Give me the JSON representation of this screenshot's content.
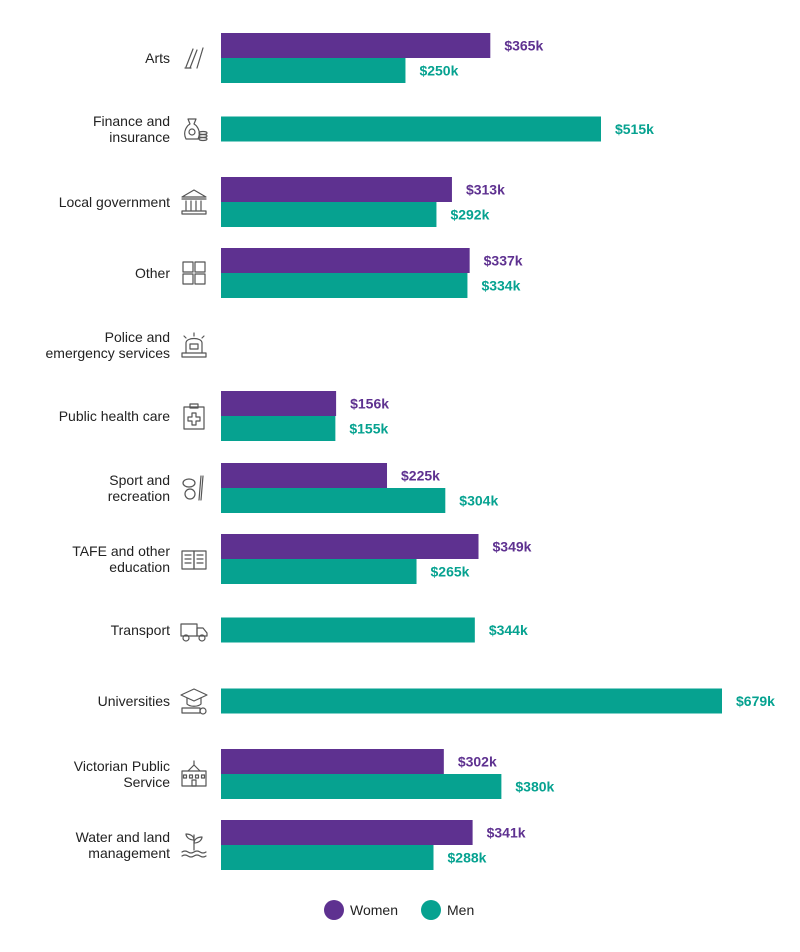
{
  "chart_data": {
    "type": "bar",
    "orientation": "horizontal",
    "categories": [
      [
        "Arts"
      ],
      [
        "Finance and",
        "insurance"
      ],
      [
        "Local government"
      ],
      [
        "Other"
      ],
      [
        "Police and",
        "emergency services"
      ],
      [
        "Public health care"
      ],
      [
        "Sport and",
        "recreation"
      ],
      [
        "TAFE and other",
        "education"
      ],
      [
        "Transport"
      ],
      [
        "Universities"
      ],
      [
        "Victorian Public",
        "Service"
      ],
      [
        "Water and land",
        "management"
      ]
    ],
    "icons": [
      "paintbrush-icon",
      "money-bag-icon",
      "government-building-icon",
      "grid-squares-icon",
      "siren-icon",
      "medical-clipboard-icon",
      "sport-equipment-icon",
      "books-icon",
      "truck-icon",
      "graduation-cap-icon",
      "school-building-icon",
      "water-plant-icon"
    ],
    "series": [
      {
        "name": "Women",
        "color": "#5e3190",
        "values": [
          365,
          null,
          313,
          337,
          null,
          156,
          225,
          349,
          null,
          null,
          302,
          341
        ],
        "labels": [
          "$365k",
          null,
          "$313k",
          "$337k",
          null,
          "$156k",
          "$225k",
          "$349k",
          null,
          null,
          "$302k",
          "$341k"
        ]
      },
      {
        "name": "Men",
        "color": "#06a290",
        "values": [
          250,
          515,
          292,
          334,
          null,
          155,
          304,
          265,
          344,
          679,
          380,
          288
        ],
        "labels": [
          "$250k",
          "$515k",
          "$292k",
          "$334k",
          null,
          "$155k",
          "$304k",
          "$265k",
          "$344k",
          "$679k",
          "$380k",
          "$288k"
        ]
      }
    ],
    "legend": {
      "position": "bottom-center"
    },
    "grid": false,
    "xlim": [
      0,
      679
    ]
  }
}
